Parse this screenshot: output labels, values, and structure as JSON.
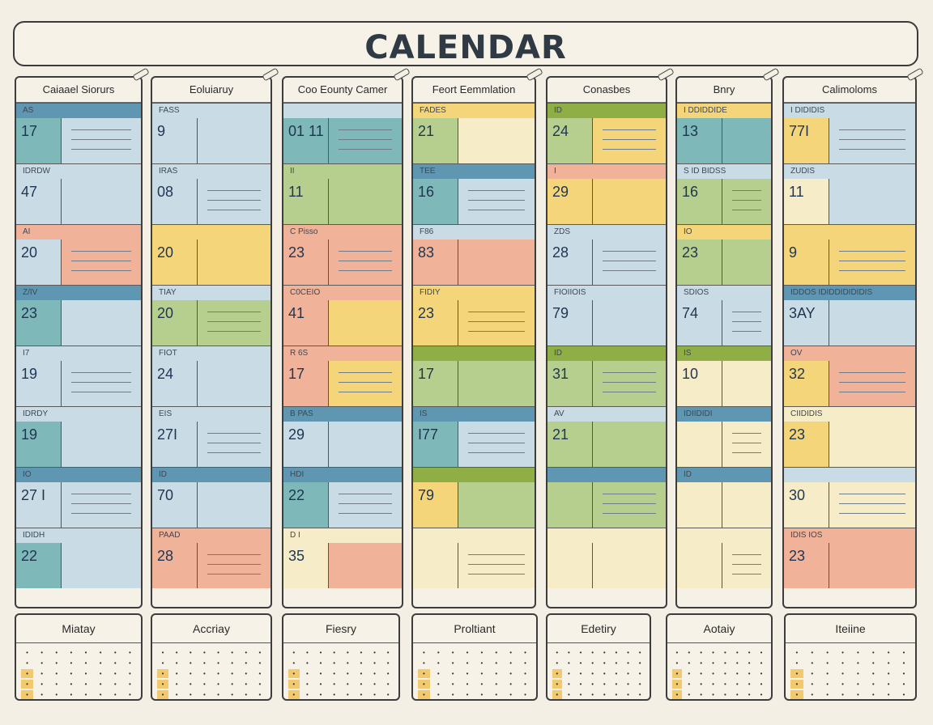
{
  "title": "CALENDAR",
  "colors": {
    "blue": "#5f97b3",
    "lightblue": "#c9dce6",
    "teal": "#7fb8b8",
    "green": "#b7cf8e",
    "olive": "#8fae45",
    "yellow": "#f5d57a",
    "peach": "#f1b29a",
    "cream": "#f7ecc8"
  },
  "columns": [
    {
      "header": "Caiaael Siorurs",
      "blocks": [
        {
          "strip": "AS",
          "day": "17",
          "strip_color": "blue",
          "num_color": "teal",
          "side_color": "lightblue"
        },
        {
          "strip": "IDRDW",
          "day": "47",
          "strip_color": "lightblue",
          "num_color": "lightblue",
          "side_color": "lightblue"
        },
        {
          "strip": "AI",
          "day": "20",
          "strip_color": "peach",
          "num_color": "lightblue",
          "side_color": "peach"
        },
        {
          "strip": "Z/IV",
          "day": "23",
          "strip_color": "blue",
          "num_color": "teal",
          "side_color": "lightblue"
        },
        {
          "strip": "I7",
          "day": "19",
          "strip_color": "lightblue",
          "num_color": "lightblue",
          "side_color": "lightblue"
        },
        {
          "strip": "IDRDY",
          "day": "19",
          "strip_color": "lightblue",
          "num_color": "teal",
          "side_color": "lightblue"
        },
        {
          "strip": "IO",
          "day": "27 I",
          "strip_color": "blue",
          "num_color": "lightblue",
          "side_color": "lightblue"
        },
        {
          "strip": "IDIDH",
          "day": "22",
          "strip_color": "lightblue",
          "num_color": "teal",
          "side_color": "lightblue"
        }
      ]
    },
    {
      "header": "Eoluiaruy",
      "blocks": [
        {
          "strip": "FASS",
          "day": "9",
          "strip_color": "lightblue",
          "num_color": "lightblue",
          "side_color": "lightblue"
        },
        {
          "strip": "IRAS",
          "day": "08",
          "strip_color": "lightblue",
          "num_color": "lightblue",
          "side_color": "lightblue"
        },
        {
          "strip": "",
          "day": "20",
          "strip_color": "yellow",
          "num_color": "yellow",
          "side_color": "yellow"
        },
        {
          "strip": "TIAY",
          "day": "20",
          "strip_color": "lightblue",
          "num_color": "green",
          "side_color": "green"
        },
        {
          "strip": "FIOT",
          "day": "24",
          "strip_color": "lightblue",
          "num_color": "lightblue",
          "side_color": "lightblue"
        },
        {
          "strip": "EIS",
          "day": "27I",
          "strip_color": "lightblue",
          "num_color": "lightblue",
          "side_color": "lightblue"
        },
        {
          "strip": "ID",
          "day": "70",
          "strip_color": "blue",
          "num_color": "lightblue",
          "side_color": "lightblue"
        },
        {
          "strip": "PAAD",
          "day": "28",
          "strip_color": "peach",
          "num_color": "peach",
          "side_color": "peach"
        }
      ]
    },
    {
      "header": "Coo Eounty Camer",
      "blocks": [
        {
          "strip": "",
          "day": "01 11",
          "strip_color": "lightblue",
          "num_color": "teal",
          "side_color": "teal"
        },
        {
          "strip": "II",
          "day": "11",
          "strip_color": "green",
          "num_color": "green",
          "side_color": "green"
        },
        {
          "strip": "C Pisso",
          "day": "23",
          "strip_color": "peach",
          "num_color": "peach",
          "side_color": "peach"
        },
        {
          "strip": "C0CEIO",
          "day": "41",
          "strip_color": "peach",
          "num_color": "peach",
          "side_color": "yellow"
        },
        {
          "strip": "R 6S",
          "day": "17",
          "strip_color": "peach",
          "num_color": "peach",
          "side_color": "yellow"
        },
        {
          "strip": "B PAS",
          "day": "29",
          "strip_color": "blue",
          "num_color": "lightblue",
          "side_color": "lightblue"
        },
        {
          "strip": "HDI",
          "day": "22",
          "strip_color": "blue",
          "num_color": "teal",
          "side_color": "lightblue"
        },
        {
          "strip": "D I",
          "day": "35",
          "strip_color": "cream",
          "num_color": "cream",
          "side_color": "peach"
        }
      ]
    },
    {
      "header": "Feort Eemmlation",
      "blocks": [
        {
          "strip": "FADES",
          "day": "21",
          "strip_color": "yellow",
          "num_color": "green",
          "side_color": "cream"
        },
        {
          "strip": "TEE",
          "day": "16",
          "strip_color": "blue",
          "num_color": "teal",
          "side_color": "lightblue"
        },
        {
          "strip": "F86",
          "day": "83",
          "strip_color": "lightblue",
          "num_color": "peach",
          "side_color": "peach"
        },
        {
          "strip": "FIDIY",
          "day": "23",
          "strip_color": "yellow",
          "num_color": "yellow",
          "side_color": "yellow"
        },
        {
          "strip": "",
          "day": "17",
          "strip_color": "olive",
          "num_color": "green",
          "side_color": "green"
        },
        {
          "strip": "IS",
          "day": "I77",
          "strip_color": "blue",
          "num_color": "teal",
          "side_color": "lightblue"
        },
        {
          "strip": "",
          "day": "79",
          "strip_color": "olive",
          "num_color": "yellow",
          "side_color": "green"
        },
        {
          "strip": "",
          "day": "",
          "strip_color": "cream",
          "num_color": "cream",
          "side_color": "cream"
        }
      ]
    },
    {
      "header": "Conasbes",
      "blocks": [
        {
          "strip": "ID",
          "day": "24",
          "strip_color": "olive",
          "num_color": "green",
          "side_color": "yellow"
        },
        {
          "strip": "I",
          "day": "29",
          "strip_color": "peach",
          "num_color": "yellow",
          "side_color": "yellow"
        },
        {
          "strip": "ZDS",
          "day": "28",
          "strip_color": "lightblue",
          "num_color": "lightblue",
          "side_color": "lightblue"
        },
        {
          "strip": "FIOIIOIS",
          "day": "79",
          "strip_color": "lightblue",
          "num_color": "lightblue",
          "side_color": "lightblue"
        },
        {
          "strip": "ID",
          "day": "31",
          "strip_color": "olive",
          "num_color": "green",
          "side_color": "green"
        },
        {
          "strip": "AV",
          "day": "21",
          "strip_color": "lightblue",
          "num_color": "green",
          "side_color": "green"
        },
        {
          "strip": "",
          "day": "",
          "strip_color": "blue",
          "num_color": "green",
          "side_color": "green"
        },
        {
          "strip": "",
          "day": "",
          "strip_color": "cream",
          "num_color": "cream",
          "side_color": "cream"
        }
      ]
    },
    {
      "header": "Bnry",
      "blocks": [
        {
          "strip": "I DDIDDIDE",
          "day": "13",
          "strip_color": "yellow",
          "num_color": "teal",
          "side_color": "teal"
        },
        {
          "strip": "S ID BIDSS",
          "day": "16",
          "strip_color": "lightblue",
          "num_color": "green",
          "side_color": "green"
        },
        {
          "strip": "IO",
          "day": "23",
          "strip_color": "yellow",
          "num_color": "green",
          "side_color": "green"
        },
        {
          "strip": "SDIOS",
          "day": "74",
          "strip_color": "lightblue",
          "num_color": "lightblue",
          "side_color": "lightblue"
        },
        {
          "strip": "IS",
          "day": "10",
          "strip_color": "olive",
          "num_color": "cream",
          "side_color": "cream"
        },
        {
          "strip": "IDIIDIDI",
          "day": "",
          "strip_color": "blue",
          "num_color": "cream",
          "side_color": "cream"
        },
        {
          "strip": "ID",
          "day": "",
          "strip_color": "blue",
          "num_color": "cream",
          "side_color": "cream"
        },
        {
          "strip": "",
          "day": "",
          "strip_color": "cream",
          "num_color": "cream",
          "side_color": "cream"
        }
      ]
    },
    {
      "header": "Calimoloms",
      "blocks": [
        {
          "strip": "I DIDIDIS",
          "day": "77I",
          "strip_color": "lightblue",
          "num_color": "yellow",
          "side_color": "lightblue"
        },
        {
          "strip": "ZUDIS",
          "day": "11",
          "strip_color": "lightblue",
          "num_color": "cream",
          "side_color": "lightblue"
        },
        {
          "strip": "",
          "day": "9",
          "strip_color": "yellow",
          "num_color": "yellow",
          "side_color": "yellow"
        },
        {
          "strip": "IDDOS IDIDDIDIDIDIS",
          "day": "3AY",
          "strip_color": "blue",
          "num_color": "lightblue",
          "side_color": "lightblue"
        },
        {
          "strip": "OV",
          "day": "32",
          "strip_color": "peach",
          "num_color": "yellow",
          "side_color": "peach"
        },
        {
          "strip": "CIIDIDIS",
          "day": "23",
          "strip_color": "cream",
          "num_color": "yellow",
          "side_color": "cream"
        },
        {
          "strip": "",
          "day": "30",
          "strip_color": "lightblue",
          "num_color": "cream",
          "side_color": "cream"
        },
        {
          "strip": "IDIS IOS",
          "day": "23",
          "strip_color": "peach",
          "num_color": "peach",
          "side_color": "peach"
        }
      ]
    }
  ],
  "mini_calendars": [
    {
      "title": "Miatay"
    },
    {
      "title": "Accriay"
    },
    {
      "title": "Fiesry"
    },
    {
      "title": "Proltiant"
    },
    {
      "title": "Edetiry"
    },
    {
      "title": "Aotaiy"
    },
    {
      "title": "Iteiine"
    }
  ]
}
